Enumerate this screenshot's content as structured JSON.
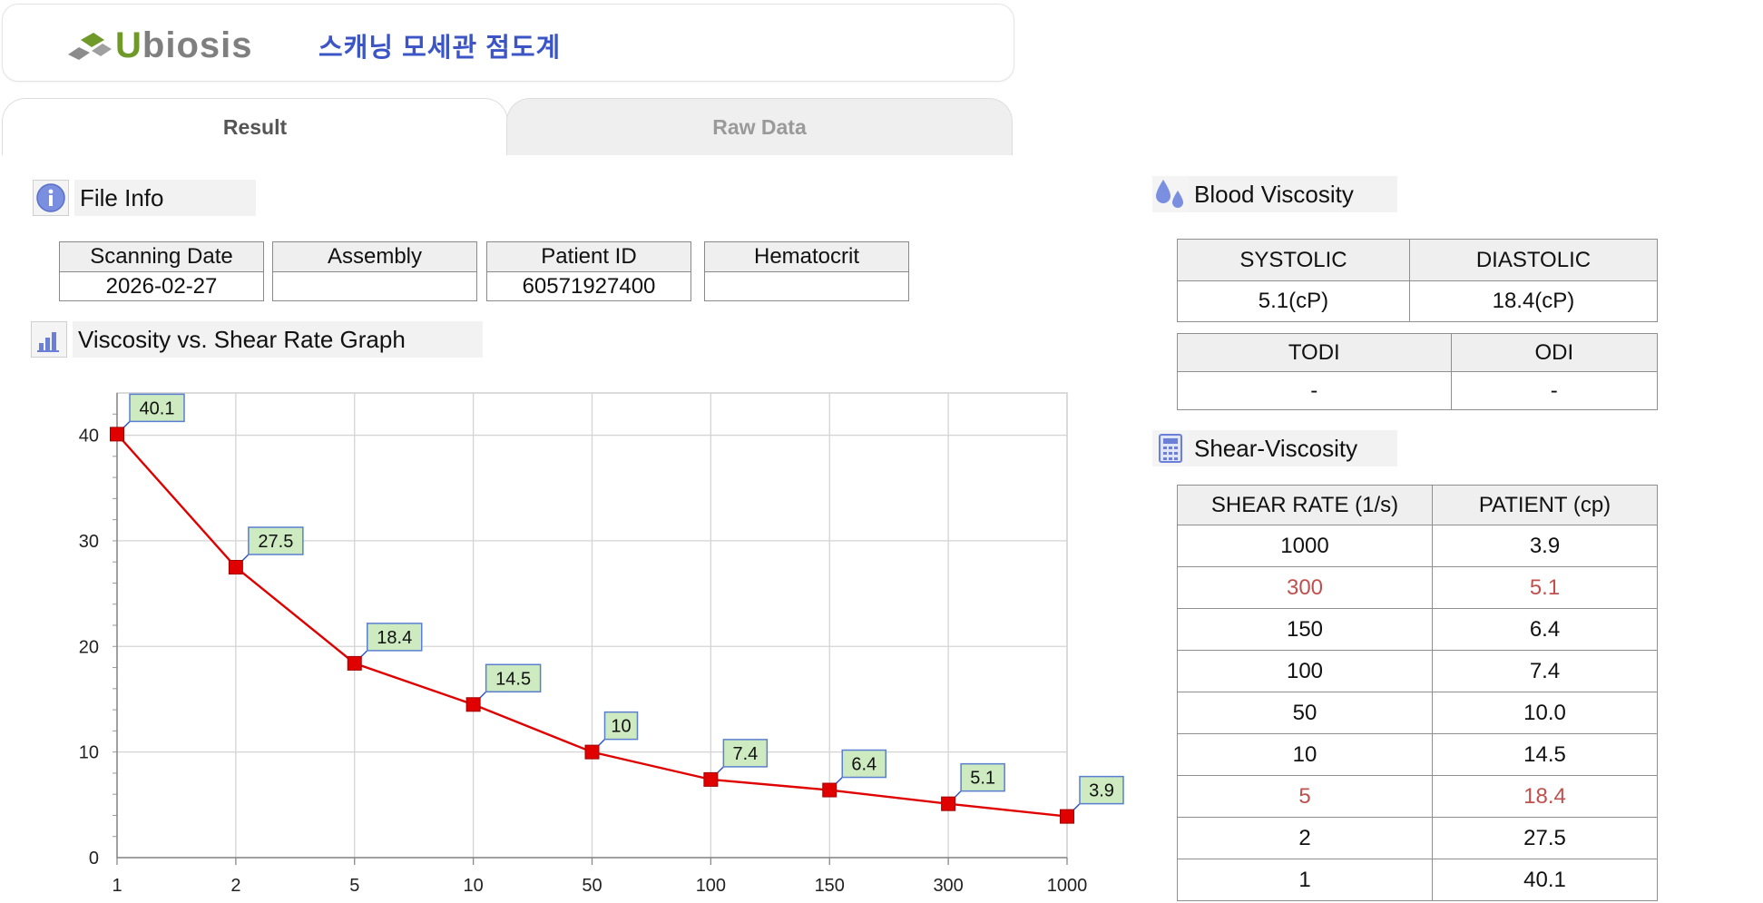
{
  "header": {
    "logo_text": "Ubiosis",
    "app_title": "스캐닝 모세관 점도계"
  },
  "tabs": [
    {
      "label": "Result",
      "active": true
    },
    {
      "label": "Raw Data",
      "active": false
    }
  ],
  "file_info": {
    "title": "File Info",
    "icon": "info-icon",
    "fields": [
      {
        "label": "Scanning Date",
        "value": "2026-02-27"
      },
      {
        "label": "Assembly",
        "value": ""
      },
      {
        "label": "Patient ID",
        "value": "60571927400"
      },
      {
        "label": "Hematocrit",
        "value": ""
      }
    ]
  },
  "graph_section": {
    "title": "Viscosity vs. Shear Rate Graph",
    "icon": "bar-chart-icon"
  },
  "chart_data": {
    "type": "line",
    "categories": [
      "1",
      "2",
      "5",
      "10",
      "50",
      "100",
      "150",
      "300",
      "1000"
    ],
    "series": [
      {
        "values": [
          40.1,
          27.5,
          18.4,
          14.5,
          10,
          7.4,
          6.4,
          5.1,
          3.9
        ],
        "color": "#e00000"
      }
    ],
    "data_labels": [
      "40.1",
      "27.5",
      "18.4",
      "14.5",
      "10",
      "7.4",
      "6.4",
      "5.1",
      "3.9"
    ],
    "y_ticks": [
      "0",
      "10",
      "20",
      "30",
      "40"
    ],
    "ylim": [
      0,
      44
    ],
    "grid": true,
    "label_bg": "#cdeac0"
  },
  "blood_viscosity": {
    "title": "Blood Viscosity",
    "icon": "blood-drop-icon",
    "headers": [
      "SYSTOLIC",
      "DIASTOLIC"
    ],
    "values": [
      "5.1(cP)",
      "18.4(cP)"
    ],
    "headers2": [
      "TODI",
      "ODI"
    ],
    "values2": [
      "-",
      "-"
    ]
  },
  "shear_viscosity": {
    "title": "Shear-Viscosity",
    "icon": "calculator-icon",
    "headers": [
      "SHEAR RATE (1/s)",
      "PATIENT (cp)"
    ],
    "highlight_color": "#c0504d",
    "rows": [
      {
        "rate": "1000",
        "value": "3.9",
        "highlight": false
      },
      {
        "rate": "300",
        "value": "5.1",
        "highlight": true
      },
      {
        "rate": "150",
        "value": "6.4",
        "highlight": false
      },
      {
        "rate": "100",
        "value": "7.4",
        "highlight": false
      },
      {
        "rate": "50",
        "value": "10.0",
        "highlight": false
      },
      {
        "rate": "10",
        "value": "14.5",
        "highlight": false
      },
      {
        "rate": "5",
        "value": "18.4",
        "highlight": true
      },
      {
        "rate": "2",
        "value": "27.5",
        "highlight": false
      },
      {
        "rate": "1",
        "value": "40.1",
        "highlight": false
      }
    ]
  }
}
